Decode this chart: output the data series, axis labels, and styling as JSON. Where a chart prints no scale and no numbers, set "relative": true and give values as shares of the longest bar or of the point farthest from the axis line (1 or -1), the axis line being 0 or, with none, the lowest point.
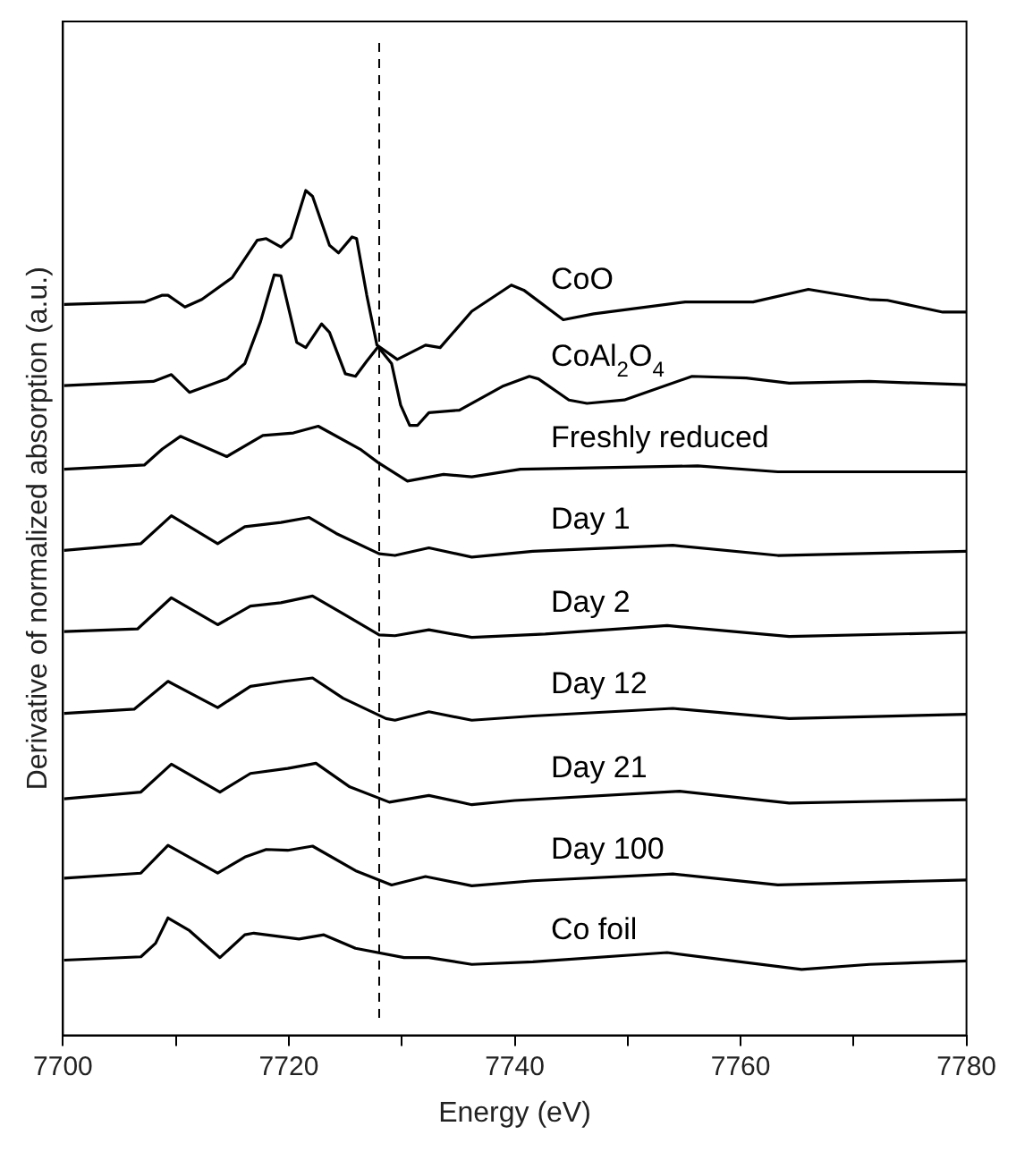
{
  "chart_data": {
    "type": "line",
    "xlabel": "Energy (eV)",
    "ylabel": "Derivative of normalized absorption (a.u.)",
    "relative": true,
    "xlim": [
      7700,
      7780
    ],
    "xticks": [
      7700,
      {
        "value": 7710,
        "label": null
      },
      7720,
      {
        "value": 7730,
        "label": null
      },
      7740,
      {
        "value": 7750,
        "label": null
      },
      7760,
      {
        "value": 7770,
        "label": null
      },
      7780
    ],
    "grid": false,
    "legend": false,
    "marker": "none",
    "line_style": "solid",
    "ref_lines": [
      {
        "axis": "x",
        "value": 7728,
        "color": "#000000",
        "line_style": "dashed"
      }
    ],
    "series": [
      {
        "name": "CoO",
        "color": "#000000",
        "x": [
          7700.1,
          7707.2,
          7708.8,
          7709.3,
          7710.8,
          7712.3,
          7715.0,
          7717.2,
          7718.0,
          7719.3,
          7720.2,
          7721.5,
          7722.1,
          7723.6,
          7724.4,
          7725.6,
          7726.0,
          7726.9,
          7727.8,
          7729.6,
          7732.1,
          7733.4,
          7736.2,
          7739.7,
          7740.8,
          7744.3,
          7747.0,
          7755.1,
          7761.1,
          7766.0,
          7771.4,
          7773.0,
          7777.9,
          7780
        ],
        "values": [
          0.865,
          0.868,
          0.876,
          0.876,
          0.862,
          0.871,
          0.897,
          0.941,
          0.943,
          0.933,
          0.944,
          1.0,
          0.993,
          0.935,
          0.926,
          0.945,
          0.943,
          0.876,
          0.817,
          0.8,
          0.817,
          0.814,
          0.857,
          0.888,
          0.882,
          0.847,
          0.854,
          0.868,
          0.868,
          0.883,
          0.871,
          0.87,
          0.856,
          0.856
        ]
      },
      {
        "name": "CoAl$_{2}$O$_{4}$",
        "color": "#000000",
        "x": [
          7700.1,
          7708.0,
          7709.6,
          7711.2,
          7714.5,
          7716.1,
          7717.5,
          7718.7,
          7719.3,
          7720.7,
          7721.5,
          7722.9,
          7723.6,
          7725.0,
          7725.9,
          7726.9,
          7727.9,
          7729.1,
          7729.9,
          7730.7,
          7731.4,
          7732.4,
          7735.1,
          7738.9,
          7741.3,
          7742.1,
          7744.8,
          7746.4,
          7749.7,
          7755.7,
          7760.5,
          7764.3,
          7771.4,
          7780
        ],
        "values": [
          0.769,
          0.774,
          0.782,
          0.761,
          0.777,
          0.795,
          0.845,
          0.9,
          0.899,
          0.82,
          0.814,
          0.842,
          0.832,
          0.783,
          0.78,
          0.798,
          0.815,
          0.795,
          0.746,
          0.722,
          0.722,
          0.737,
          0.74,
          0.768,
          0.78,
          0.777,
          0.752,
          0.748,
          0.752,
          0.78,
          0.778,
          0.772,
          0.774,
          0.77
        ]
      },
      {
        "name": "Freshly reduced",
        "color": "#000000",
        "x": [
          7700.1,
          7707.2,
          7708.8,
          7710.4,
          7714.5,
          7717.7,
          7720.4,
          7722.6,
          7726.4,
          7727.9,
          7730.5,
          7733.7,
          7736.2,
          7740.5,
          7756.2,
          7763.3,
          7780
        ],
        "values": [
          0.67,
          0.675,
          0.694,
          0.709,
          0.685,
          0.71,
          0.713,
          0.721,
          0.693,
          0.678,
          0.656,
          0.664,
          0.661,
          0.67,
          0.674,
          0.667,
          0.667
        ]
      },
      {
        "name": "Day 1",
        "color": "#000000",
        "x": [
          7700.1,
          7706.9,
          7709.6,
          7713.7,
          7716.1,
          7719.3,
          7721.8,
          7724.2,
          7728.0,
          7729.4,
          7732.4,
          7736.2,
          7741.6,
          7754.0,
          7763.3,
          7780
        ],
        "values": [
          0.574,
          0.582,
          0.615,
          0.582,
          0.602,
          0.607,
          0.613,
          0.594,
          0.57,
          0.568,
          0.577,
          0.566,
          0.573,
          0.58,
          0.568,
          0.573
        ]
      },
      {
        "name": "Day 2",
        "color": "#000000",
        "x": [
          7700.1,
          7706.6,
          7709.6,
          7713.7,
          7716.6,
          7719.3,
          7722.1,
          7724.8,
          7728.0,
          7729.4,
          7732.4,
          7736.2,
          7742.7,
          7753.5,
          7764.3,
          7780
        ],
        "values": [
          0.478,
          0.481,
          0.518,
          0.486,
          0.508,
          0.512,
          0.52,
          0.499,
          0.474,
          0.473,
          0.48,
          0.471,
          0.475,
          0.485,
          0.472,
          0.477
        ]
      },
      {
        "name": "Day 12",
        "color": "#000000",
        "x": [
          7700.1,
          7706.3,
          7709.3,
          7713.7,
          7716.6,
          7719.6,
          7722.1,
          7724.8,
          7728.6,
          7729.4,
          7732.4,
          7736.2,
          7741.6,
          7754.0,
          7764.3,
          7780
        ],
        "values": [
          0.381,
          0.386,
          0.419,
          0.388,
          0.413,
          0.419,
          0.423,
          0.399,
          0.375,
          0.373,
          0.383,
          0.373,
          0.378,
          0.387,
          0.375,
          0.38
        ]
      },
      {
        "name": "Day 21",
        "color": "#000000",
        "x": [
          7700.1,
          7706.9,
          7709.6,
          7713.9,
          7716.6,
          7719.9,
          7722.4,
          7725.4,
          7728.9,
          7732.4,
          7736.2,
          7740.0,
          7754.6,
          7764.3,
          7780
        ],
        "values": [
          0.28,
          0.288,
          0.321,
          0.288,
          0.31,
          0.316,
          0.322,
          0.294,
          0.276,
          0.284,
          0.273,
          0.278,
          0.289,
          0.275,
          0.279
        ]
      },
      {
        "name": "Day 100",
        "color": "#000000",
        "x": [
          7700.1,
          7706.9,
          7709.3,
          7713.7,
          7716.1,
          7718.0,
          7719.9,
          7722.1,
          7725.9,
          7729.1,
          7732.1,
          7736.2,
          7741.6,
          7754.0,
          7763.3,
          7780
        ],
        "values": [
          0.186,
          0.192,
          0.225,
          0.192,
          0.211,
          0.22,
          0.219,
          0.224,
          0.195,
          0.178,
          0.188,
          0.177,
          0.183,
          0.191,
          0.178,
          0.184
        ]
      },
      {
        "name": "Co foil",
        "color": "#000000",
        "x": [
          7700.1,
          7706.9,
          7708.2,
          7709.3,
          7711.2,
          7713.9,
          7716.1,
          7716.9,
          7720.9,
          7723.1,
          7725.9,
          7730.2,
          7732.4,
          7736.2,
          7741.6,
          7753.5,
          7765.4,
          7771.4,
          7780
        ],
        "values": [
          0.089,
          0.093,
          0.109,
          0.139,
          0.124,
          0.092,
          0.119,
          0.121,
          0.114,
          0.119,
          0.103,
          0.092,
          0.092,
          0.084,
          0.087,
          0.098,
          0.078,
          0.084,
          0.088
        ]
      }
    ]
  }
}
